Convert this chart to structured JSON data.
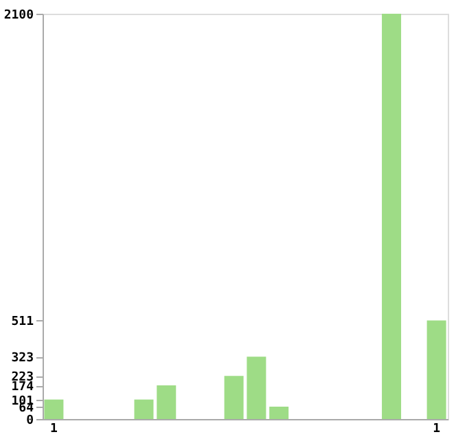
{
  "chart_data": {
    "type": "bar",
    "categories": [
      "1",
      null,
      null,
      null,
      null,
      null,
      null,
      null,
      null,
      null,
      null,
      null,
      null,
      null,
      null,
      null,
      null,
      "1"
    ],
    "values": [
      101,
      0,
      0,
      0,
      101,
      174,
      0,
      0,
      223,
      323,
      64,
      0,
      0,
      0,
      0,
      2100,
      0,
      511
    ],
    "color": "#9edc86",
    "ylim": [
      0,
      2100
    ],
    "yticks": [
      0,
      64,
      101,
      174,
      223,
      323,
      511,
      2100
    ],
    "grid": false
  }
}
